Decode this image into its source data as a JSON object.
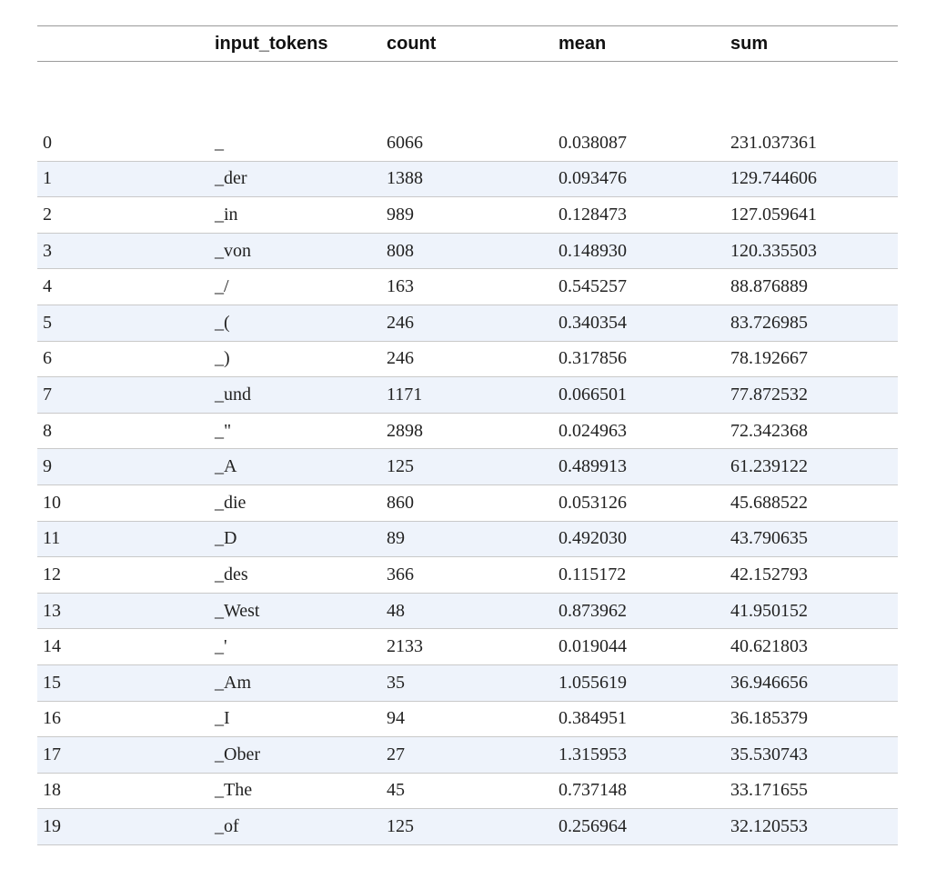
{
  "table": {
    "columns": [
      "",
      "input_tokens",
      "count",
      "mean",
      "sum"
    ],
    "rows": [
      {
        "index": "0",
        "input_tokens": "_",
        "count": "6066",
        "mean": "0.038087",
        "sum": "231.037361"
      },
      {
        "index": "1",
        "input_tokens": "_der",
        "count": "1388",
        "mean": "0.093476",
        "sum": "129.744606"
      },
      {
        "index": "2",
        "input_tokens": "_in",
        "count": "989",
        "mean": "0.128473",
        "sum": "127.059641"
      },
      {
        "index": "3",
        "input_tokens": "_von",
        "count": "808",
        "mean": "0.148930",
        "sum": "120.335503"
      },
      {
        "index": "4",
        "input_tokens": "_/",
        "count": "163",
        "mean": "0.545257",
        "sum": "88.876889"
      },
      {
        "index": "5",
        "input_tokens": "_(",
        "count": "246",
        "mean": "0.340354",
        "sum": "83.726985"
      },
      {
        "index": "6",
        "input_tokens": "_)",
        "count": "246",
        "mean": "0.317856",
        "sum": "78.192667"
      },
      {
        "index": "7",
        "input_tokens": "_und",
        "count": "1171",
        "mean": "0.066501",
        "sum": "77.872532"
      },
      {
        "index": "8",
        "input_tokens": "_\"",
        "count": "2898",
        "mean": "0.024963",
        "sum": "72.342368"
      },
      {
        "index": "9",
        "input_tokens": "_A",
        "count": "125",
        "mean": "0.489913",
        "sum": "61.239122"
      },
      {
        "index": "10",
        "input_tokens": "_die",
        "count": "860",
        "mean": "0.053126",
        "sum": "45.688522"
      },
      {
        "index": "11",
        "input_tokens": "_D",
        "count": "89",
        "mean": "0.492030",
        "sum": "43.790635"
      },
      {
        "index": "12",
        "input_tokens": "_des",
        "count": "366",
        "mean": "0.115172",
        "sum": "42.152793"
      },
      {
        "index": "13",
        "input_tokens": "_West",
        "count": "48",
        "mean": "0.873962",
        "sum": "41.950152"
      },
      {
        "index": "14",
        "input_tokens": "_'",
        "count": "2133",
        "mean": "0.019044",
        "sum": "40.621803"
      },
      {
        "index": "15",
        "input_tokens": "_Am",
        "count": "35",
        "mean": "1.055619",
        "sum": "36.946656"
      },
      {
        "index": "16",
        "input_tokens": "_I",
        "count": "94",
        "mean": "0.384951",
        "sum": "36.185379"
      },
      {
        "index": "17",
        "input_tokens": "_Ober",
        "count": "27",
        "mean": "1.315953",
        "sum": "35.530743"
      },
      {
        "index": "18",
        "input_tokens": "_The",
        "count": "45",
        "mean": "0.737148",
        "sum": "33.171655"
      },
      {
        "index": "19",
        "input_tokens": "_of",
        "count": "125",
        "mean": "0.256964",
        "sum": "32.120553"
      }
    ]
  },
  "colors": {
    "stripe": "#eef3fb",
    "rule": "#9a9a9a",
    "row_border": "#c9c9c9"
  }
}
